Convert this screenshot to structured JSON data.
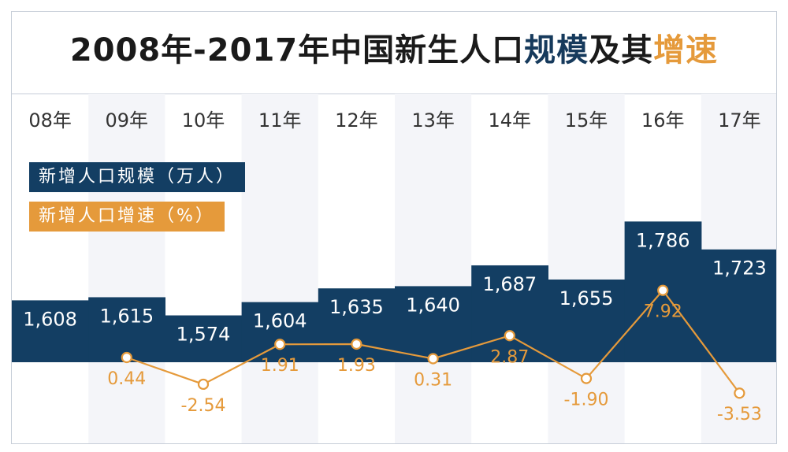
{
  "title": {
    "part1": "2008年-2017年中国新生人口",
    "part2": "规模",
    "part3": "及其",
    "part4": "增速"
  },
  "colors": {
    "bar": "#133e63",
    "line": "#e59a3b",
    "column_alt": "#f4f5f9",
    "title_blue": "#163a5c"
  },
  "chart_data": {
    "type": "bar",
    "categories": [
      "08年",
      "09年",
      "10年",
      "11年",
      "12年",
      "13年",
      "14年",
      "15年",
      "16年",
      "17年"
    ],
    "series": [
      {
        "name": "新增人口规模（万人）",
        "type": "bar",
        "values": [
          1608,
          1615,
          1574,
          1604,
          1635,
          1640,
          1687,
          1655,
          1786,
          1723
        ],
        "labels": [
          "1,608",
          "1,615",
          "1,574",
          "1,604",
          "1,635",
          "1,640",
          "1,687",
          "1,655",
          "1,786",
          "1,723"
        ]
      },
      {
        "name": "新增人口增速（%）",
        "type": "line",
        "values": [
          null,
          0.44,
          -2.54,
          1.91,
          1.93,
          0.31,
          2.87,
          -1.9,
          7.92,
          -3.53
        ],
        "labels": [
          "",
          "0.44",
          "-2.54",
          "1.91",
          "1.93",
          "0.31",
          "2.87",
          "-1.90",
          "7.92",
          "-3.53"
        ]
      }
    ],
    "legend_position": "top-left",
    "grid": false
  }
}
